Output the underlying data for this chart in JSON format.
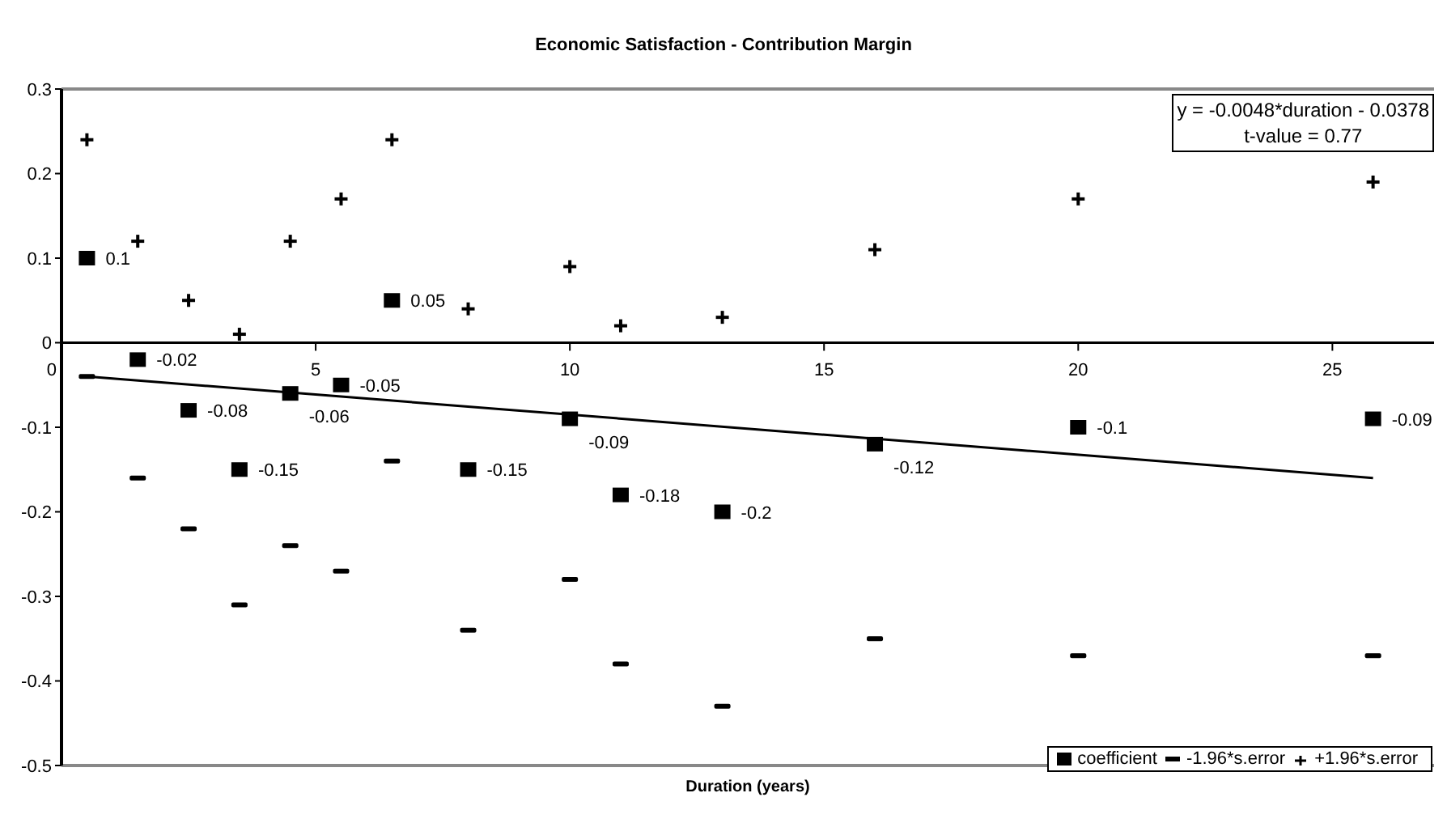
{
  "chart_data": {
    "type": "scatter",
    "title": "Economic Satisfaction - Contribution Margin",
    "xlabel": "Duration (years)",
    "x": [
      0.5,
      1.5,
      2.5,
      3.5,
      4.5,
      5.5,
      6.5,
      8,
      10,
      11,
      13,
      16,
      20,
      25.8
    ],
    "series": [
      {
        "name": "coefficient",
        "color": "#000000",
        "marker": "square",
        "data_labels": true,
        "values": [
          0.1,
          -0.02,
          -0.08,
          -0.15,
          -0.06,
          -0.05,
          0.05,
          -0.15,
          -0.09,
          -0.18,
          -0.2,
          -0.12,
          -0.1,
          -0.09
        ]
      },
      {
        "name": "-1.96*s.error",
        "color": "#000000",
        "values": [
          -0.04,
          -0.16,
          -0.22,
          -0.31,
          -0.24,
          -0.27,
          -0.14,
          -0.34,
          -0.28,
          -0.38,
          -0.43,
          -0.35,
          -0.37,
          -0.37
        ]
      },
      {
        "name": "+1.96*s.error",
        "color": "#000000",
        "marker": "cross",
        "values": [
          0.24,
          0.12,
          0.05,
          0.01,
          0.12,
          0.17,
          0.24,
          0.04,
          0.09,
          0.02,
          0.03,
          0.11,
          0.17,
          0.19
        ]
      },
      {
        "type": "line",
        "color": "#000000",
        "marker": "none",
        "line_style": "solid",
        "x": [
          0.5,
          25.8
        ],
        "values": [
          -0.04,
          -0.16
        ]
      }
    ],
    "xlim": [
      0,
      27
    ],
    "xticks": [
      0,
      5,
      10,
      15,
      20,
      25
    ],
    "ylim": [
      -0.5,
      0.3
    ],
    "yticks": [
      -0.5,
      -0.4,
      -0.3,
      -0.2,
      -0.1,
      0,
      0.1,
      0.2,
      0.3
    ],
    "grid": false,
    "legend": "bottom right",
    "annotations": [
      "y = -0.0048*duration - 0.0378",
      "t-value = 0.77"
    ]
  }
}
